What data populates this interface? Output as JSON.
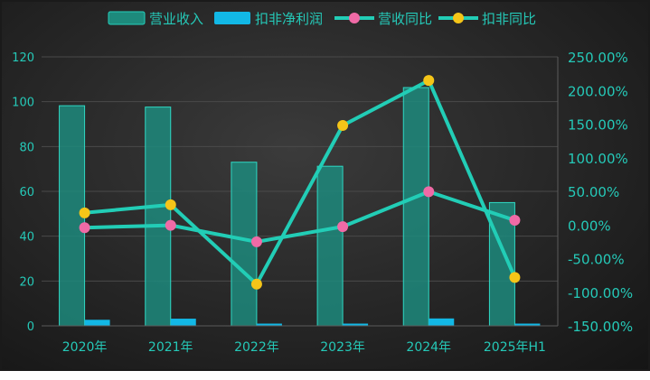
{
  "chart_data": {
    "type": "bar",
    "categories": [
      "2020年",
      "2021年",
      "2022年",
      "2023年",
      "2024年",
      "2025年H1"
    ],
    "series": [
      {
        "name": "营业收入",
        "kind": "bar",
        "axis": "left",
        "values": [
          98.2,
          97.6,
          73.0,
          71.2,
          106.3,
          55.0
        ]
      },
      {
        "name": "扣非净利润",
        "kind": "bar",
        "axis": "left",
        "values": [
          2.7,
          3.2,
          1.0,
          1.0,
          3.3,
          1.0
        ]
      },
      {
        "name": "营收同比",
        "kind": "line",
        "axis": "right",
        "values": [
          -4.0,
          -0.5,
          -25.0,
          -2.5,
          49.5,
          7.0
        ]
      },
      {
        "name": "扣非同比",
        "kind": "line",
        "axis": "right",
        "values": [
          18.0,
          30.0,
          -88.0,
          148.0,
          215.0,
          -78.0
        ]
      }
    ],
    "y_left": {
      "min": 0,
      "max": 120,
      "ticks": [
        "0",
        "20",
        "40",
        "60",
        "80",
        "100",
        "120"
      ]
    },
    "y_right": {
      "min": -150,
      "max": 250,
      "ticks": [
        "-150.00%",
        "-100.00%",
        "-50.00%",
        "0.00%",
        "50.00%",
        "100.00%",
        "150.00%",
        "200.00%",
        "250.00%"
      ]
    },
    "legend_position": "top",
    "grid": true,
    "colors": {
      "revenue_bar": "#1d8a7c",
      "profit_bar": "#12b8e6",
      "line": "#22cdb6",
      "revenue_yoy_marker": "#f06aa6",
      "profit_yoy_marker": "#f5c518",
      "text": "#25c9b8",
      "grid": "#4a4a4a"
    }
  }
}
